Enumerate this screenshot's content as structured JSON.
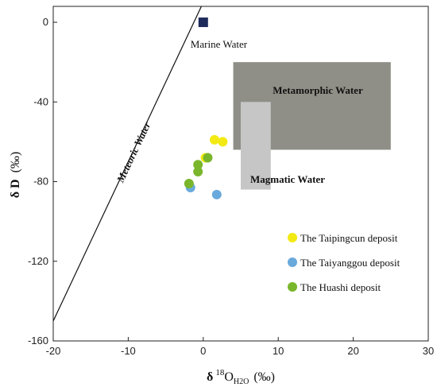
{
  "chart_data": {
    "type": "scatter",
    "xlabel": {
      "main": "δ",
      "sup": "18",
      "base": "O",
      "sub": "H2O",
      "unit": "(‰)"
    },
    "ylabel": {
      "main": "δ D",
      "unit": "(‰)"
    },
    "xlim": [
      -20,
      30
    ],
    "ylim": [
      -160,
      8
    ],
    "xticks": [
      -20,
      -10,
      0,
      10,
      20,
      30
    ],
    "yticks": [
      0,
      -40,
      -80,
      -120,
      -160
    ],
    "grid": false,
    "legend_position": "bottom-right",
    "regions": [
      {
        "name": "Metamorphic Water",
        "x": [
          4,
          25
        ],
        "y": [
          -64,
          -20
        ],
        "color": "#8f8f87"
      },
      {
        "name": "Magmatic Water",
        "x": [
          5,
          9
        ],
        "y": [
          -84,
          -40
        ],
        "color": "#c6c6c6"
      }
    ],
    "meteoric_line": {
      "label": "Meteoric Water",
      "slope": 8,
      "intercept": 10
    },
    "marine_water": {
      "label": "Marine Water",
      "x": 0,
      "y": 0,
      "color": "#1d2a5a"
    },
    "series": [
      {
        "name": "The  Taipingcun deposit",
        "color": "#f2ea12",
        "points": [
          [
            1.5,
            -59
          ],
          [
            2.6,
            -60
          ],
          [
            0.3,
            -68
          ]
        ]
      },
      {
        "name": "The Taiyanggou deposit",
        "color": "#69a9dc",
        "points": [
          [
            -1.7,
            -83
          ],
          [
            1.8,
            -86.5
          ]
        ]
      },
      {
        "name": "The Huashi deposit",
        "color": "#7ab62b",
        "points": [
          [
            0.6,
            -68
          ],
          [
            -0.7,
            -71.5
          ],
          [
            -0.7,
            -75
          ],
          [
            -1.9,
            -81
          ]
        ]
      }
    ]
  }
}
